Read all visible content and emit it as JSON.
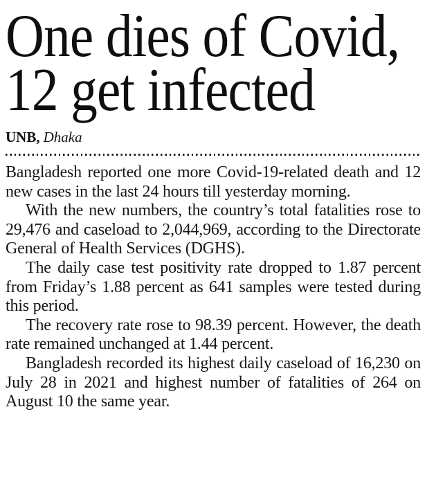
{
  "article": {
    "headline": {
      "line1": "One dies of Covid,",
      "line2": "12 get infected"
    },
    "byline": {
      "agency": "UNB,",
      "location": "Dhaka"
    },
    "paragraphs": [
      "Bangladesh reported one more Covid-19-related death and 12 new cases in the last 24 hours till yesterday morning.",
      "With the new numbers, the country’s total fatalities rose to 29,476 and caseload to 2,044,969, according to the Directorate General of Health Services (DGHS).",
      "The daily case test positivity rate dropped to 1.87 percent from Friday’s 1.88 percent as 641 samples were tested during this period.",
      "The recovery rate rose to 98.39 percent. However, the death rate remained unchanged at 1.44 percent.",
      "Bangladesh recorded its highest daily caseload of 16,230 on July 28 in 2021 and highest number of fatalities of 264 on August 10 the same year."
    ],
    "stats": {
      "new_deaths": "1",
      "new_cases": "12",
      "total_fatalities": "29,476",
      "total_caseload": "2,044,969",
      "positivity_rate_percent": "1.87",
      "previous_positivity_rate_percent": "1.88",
      "samples_tested": "641",
      "recovery_rate_percent": "98.39",
      "death_rate_percent": "1.44",
      "highest_daily_caseload": "16,230",
      "highest_daily_fatalities": "264"
    },
    "colors": {
      "text": "#161616",
      "headline": "#0f0f0f",
      "background": "#ffffff",
      "rule": "#1c1c1c"
    }
  }
}
